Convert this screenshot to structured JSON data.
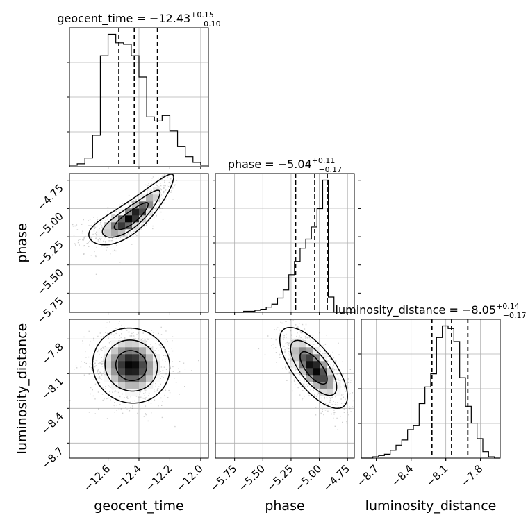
{
  "chart_data": {
    "type": "corner",
    "parameters": [
      {
        "name": "geocent_time",
        "label": "geocent_time",
        "range": [
          -12.85,
          -11.95
        ],
        "ticks": [
          "−12.6",
          "−12.4",
          "−12.2",
          "−12.0"
        ],
        "tick_values": [
          -12.6,
          -12.4,
          -12.2,
          -12.0
        ],
        "title": {
          "base": "geocent_time = −12.43",
          "plus": "+0.15",
          "minus": "−0.10"
        },
        "quantiles": [
          -12.53,
          -12.43,
          -12.28
        ],
        "histogram": {
          "edges": [
            -12.85,
            -12.8,
            -12.75,
            -12.7,
            -12.65,
            -12.6,
            -12.55,
            -12.5,
            -12.45,
            -12.4,
            -12.35,
            -12.3,
            -12.25,
            -12.2,
            -12.15,
            -12.1,
            -12.05,
            -12.0,
            -11.95
          ],
          "counts": [
            1,
            2,
            6,
            22,
            78,
            93,
            87,
            86,
            78,
            63,
            35,
            32,
            36,
            25,
            14,
            7,
            3,
            1
          ]
        }
      },
      {
        "name": "phase",
        "label": "phase",
        "range": [
          -5.92,
          -4.69
        ],
        "ticks": [
          "−5.75",
          "−5.50",
          "−5.25",
          "−5.00",
          "−4.75"
        ],
        "tick_values": [
          -5.75,
          -5.5,
          -5.25,
          -5.0,
          -4.75
        ],
        "title": {
          "base": "phase = −5.04",
          "plus": "+0.11",
          "minus": "−0.17"
        },
        "quantiles": [
          -5.21,
          -5.04,
          -4.93
        ],
        "histogram": {
          "edges": [
            -5.92,
            -5.87,
            -5.82,
            -5.77,
            -5.72,
            -5.67,
            -5.62,
            -5.57,
            -5.52,
            -5.47,
            -5.42,
            -5.37,
            -5.32,
            -5.27,
            -5.22,
            -5.17,
            -5.12,
            -5.07,
            -5.02,
            -4.97,
            -4.92,
            -4.87,
            -4.82,
            -4.77,
            -4.72,
            -4.69
          ],
          "counts": [
            0,
            0,
            0,
            0,
            0,
            1,
            1,
            2,
            3,
            5,
            8,
            14,
            22,
            37,
            50,
            63,
            72,
            84,
            102,
            130,
            15,
            0,
            0,
            0,
            0
          ]
        }
      },
      {
        "name": "luminosity_distance",
        "label": "luminosity_distance",
        "range": [
          -8.83,
          -7.63
        ],
        "ticks": [
          "−8.7",
          "−8.4",
          "−8.1",
          "−7.8"
        ],
        "tick_values": [
          -8.7,
          -8.4,
          -8.1,
          -7.8
        ],
        "title": {
          "base": "luminosity_distance = −8.05",
          "plus": "+0.14",
          "minus": "−0.17"
        },
        "quantiles": [
          -8.22,
          -8.05,
          -7.91
        ],
        "histogram": {
          "edges": [
            -8.83,
            -8.78,
            -8.73,
            -8.68,
            -8.63,
            -8.58,
            -8.53,
            -8.48,
            -8.43,
            -8.38,
            -8.33,
            -8.28,
            -8.23,
            -8.18,
            -8.13,
            -8.08,
            -8.03,
            -7.98,
            -7.93,
            -7.88,
            -7.83,
            -7.78,
            -7.73,
            -7.68,
            -7.63
          ],
          "counts": [
            0,
            0,
            1,
            2,
            3,
            6,
            10,
            14,
            22,
            25,
            42,
            55,
            65,
            93,
            102,
            100,
            90,
            62,
            40,
            27,
            15,
            5,
            1,
            0
          ]
        }
      }
    ],
    "pairs": [
      {
        "x": "geocent_time",
        "y": "phase",
        "center": [
          -12.45,
          -5.08
        ],
        "spread": [
          0.11,
          0.12
        ],
        "corr": 0.85,
        "bend": -0.55
      },
      {
        "x": "geocent_time",
        "y": "luminosity_distance",
        "center": [
          -12.45,
          -8.03
        ],
        "spread": [
          0.1,
          0.13
        ],
        "corr": -0.05,
        "bend": 0.0
      },
      {
        "x": "phase",
        "y": "luminosity_distance",
        "center": [
          -5.05,
          -8.05
        ],
        "spread": [
          0.12,
          0.14
        ],
        "corr": -0.7,
        "bend": 0.0
      }
    ],
    "grid": true,
    "quantile_style": "dashed"
  }
}
